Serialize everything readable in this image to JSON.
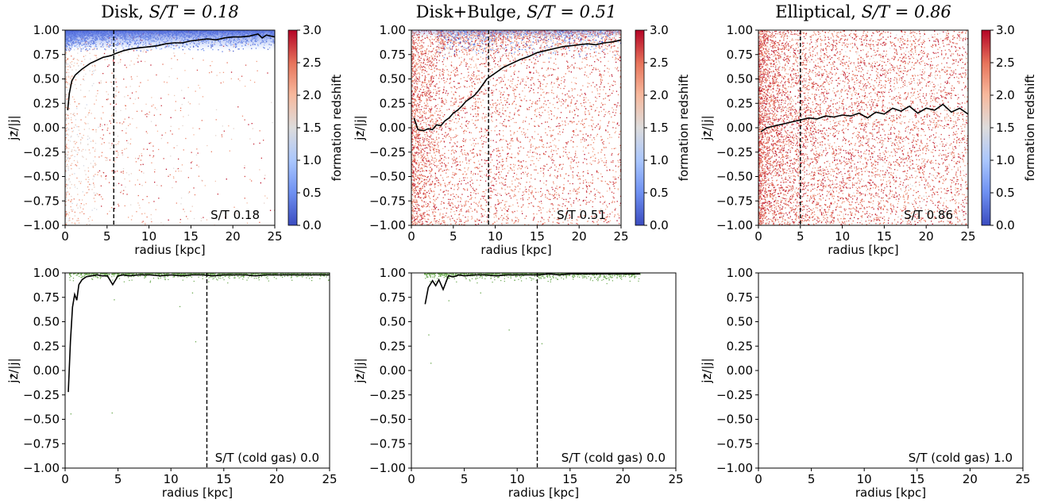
{
  "figure": {
    "colorbar_label": "formation redshift",
    "colorbar_ticks": [
      "0.0",
      "0.5",
      "1.0",
      "1.5",
      "2.0",
      "2.5",
      "3.0"
    ],
    "colorbar_range": [
      0,
      3
    ],
    "colormap": "coolwarm",
    "gas_point_color": "#6aa84f"
  },
  "chart_data": [
    {
      "type": "scatter",
      "panel": "stars-disk",
      "title": "Disk, S/T = 0.18",
      "title_prefix": "Disk, ",
      "title_math": "S/T = 0.18",
      "xlabel": "radius [kpc]",
      "ylabel": "jz/|j|",
      "xlim": [
        0,
        25
      ],
      "ylim": [
        -1,
        1
      ],
      "xticks": [
        "0",
        "5",
        "10",
        "15",
        "20",
        "25"
      ],
      "yticks": [
        "-1.00",
        "-0.75",
        "-0.50",
        "-0.25",
        "0.00",
        "0.25",
        "0.50",
        "0.75",
        "1.00"
      ],
      "vline_x": 5.8,
      "annotation": "S/T    0.18",
      "color_by": "formation redshift",
      "median_line": {
        "x": [
          0.3,
          0.5,
          0.8,
          1.2,
          1.6,
          2.0,
          2.5,
          3.0,
          3.5,
          4.0,
          4.5,
          5.0,
          5.5,
          6.0,
          7.0,
          8.0,
          9.0,
          10.0,
          11.0,
          12.0,
          13.0,
          14.0,
          15.0,
          16.0,
          17.0,
          18.0,
          19.0,
          20.0,
          21.0,
          22.0,
          23.0,
          23.5,
          24.0,
          25.0
        ],
        "y": [
          0.18,
          0.35,
          0.48,
          0.54,
          0.57,
          0.6,
          0.63,
          0.66,
          0.68,
          0.7,
          0.72,
          0.73,
          0.74,
          0.76,
          0.79,
          0.81,
          0.82,
          0.83,
          0.84,
          0.86,
          0.87,
          0.87,
          0.89,
          0.9,
          0.91,
          0.9,
          0.92,
          0.93,
          0.93,
          0.94,
          0.96,
          0.92,
          0.95,
          0.93
        ]
      }
    },
    {
      "type": "scatter",
      "panel": "stars-disk-bulge",
      "title": "Disk+Bulge, S/T = 0.51",
      "title_prefix": "Disk+Bulge, ",
      "title_math": "S/T = 0.51",
      "xlabel": "radius [kpc]",
      "ylabel": "jz/|j|",
      "xlim": [
        0,
        25
      ],
      "ylim": [
        -1,
        1
      ],
      "xticks": [
        "0",
        "5",
        "10",
        "15",
        "20",
        "25"
      ],
      "yticks": [
        "-1.00",
        "-0.75",
        "-0.50",
        "-0.25",
        "0.00",
        "0.25",
        "0.50",
        "0.75",
        "1.00"
      ],
      "vline_x": 9.2,
      "annotation": "S/T    0.51",
      "color_by": "formation redshift",
      "median_line": {
        "x": [
          0.3,
          0.8,
          1.5,
          2.0,
          2.5,
          3.0,
          3.5,
          4.0,
          4.5,
          5.0,
          5.5,
          6.0,
          6.5,
          7.0,
          7.5,
          8.0,
          8.5,
          9.0,
          9.5,
          10.0,
          11.0,
          12.0,
          13.0,
          14.0,
          15.0,
          16.0,
          17.0,
          18.0,
          19.0,
          20.0,
          21.0,
          22.0,
          23.0,
          24.0,
          25.0
        ],
        "y": [
          0.1,
          -0.02,
          -0.03,
          -0.01,
          -0.02,
          0.03,
          0.02,
          0.07,
          0.1,
          0.15,
          0.18,
          0.22,
          0.27,
          0.3,
          0.33,
          0.38,
          0.44,
          0.5,
          0.53,
          0.56,
          0.62,
          0.66,
          0.7,
          0.73,
          0.77,
          0.79,
          0.81,
          0.83,
          0.84,
          0.85,
          0.86,
          0.85,
          0.87,
          0.88,
          0.9
        ]
      }
    },
    {
      "type": "scatter",
      "panel": "stars-elliptical",
      "title": "Elliptical, S/T = 0.86",
      "title_prefix": "Elliptical, ",
      "title_math": "S/T = 0.86",
      "xlabel": "radius [kpc]",
      "ylabel": "jz/|j|",
      "xlim": [
        0,
        25
      ],
      "ylim": [
        -1,
        1
      ],
      "xticks": [
        "0",
        "5",
        "10",
        "15",
        "20",
        "25"
      ],
      "yticks": [
        "-1.00",
        "-0.75",
        "-0.50",
        "-0.25",
        "0.00",
        "0.25",
        "0.50",
        "0.75",
        "1.00"
      ],
      "vline_x": 5.0,
      "annotation": "S/T    0.86",
      "color_by": "formation redshift",
      "median_line": {
        "x": [
          0.3,
          1.0,
          2.0,
          3.0,
          4.0,
          5.0,
          6.0,
          7.0,
          8.0,
          9.0,
          10.0,
          11.0,
          12.0,
          13.0,
          14.0,
          15.0,
          16.0,
          17.0,
          18.0,
          19.0,
          20.0,
          21.0,
          22.0,
          23.0,
          24.0,
          25.0
        ],
        "y": [
          -0.04,
          0.0,
          0.02,
          0.04,
          0.06,
          0.08,
          0.1,
          0.09,
          0.12,
          0.11,
          0.13,
          0.12,
          0.15,
          0.1,
          0.16,
          0.14,
          0.2,
          0.17,
          0.22,
          0.15,
          0.2,
          0.18,
          0.24,
          0.16,
          0.2,
          0.14
        ]
      }
    },
    {
      "type": "scatter",
      "panel": "gas-disk",
      "title": "",
      "xlabel": "radius [kpc]",
      "ylabel": "jz/|j|",
      "xlim": [
        0,
        25
      ],
      "ylim": [
        -1,
        1
      ],
      "xticks": [
        "0",
        "5",
        "10",
        "15",
        "20",
        "25"
      ],
      "yticks": [
        "-1.00",
        "-0.75",
        "-0.50",
        "-0.25",
        "0.00",
        "0.25",
        "0.50",
        "0.75",
        "1.00"
      ],
      "vline_x": 13.4,
      "annotation": "S/T (cold gas)   0.0",
      "median_line": {
        "x": [
          0.3,
          0.5,
          0.7,
          0.9,
          1.1,
          1.3,
          1.6,
          2.0,
          2.5,
          3.0,
          3.5,
          4.0,
          4.5,
          5.0,
          5.5,
          6.0,
          7.0,
          8.0,
          9.0,
          10.0,
          11.0,
          12.0,
          13.0,
          14.0,
          15.0,
          16.0,
          17.0,
          18.0,
          19.0,
          20.0,
          21.0,
          22.0,
          23.0,
          24.0,
          25.0
        ],
        "y": [
          -0.22,
          0.3,
          0.65,
          0.78,
          0.72,
          0.88,
          0.93,
          0.96,
          0.97,
          0.98,
          0.97,
          0.97,
          0.88,
          0.97,
          0.98,
          0.97,
          0.98,
          0.98,
          0.97,
          0.98,
          0.97,
          0.98,
          0.98,
          0.97,
          0.98,
          0.98,
          0.98,
          0.97,
          0.98,
          0.98,
          0.98,
          0.98,
          0.98,
          0.98,
          0.98
        ]
      },
      "outliers": [
        [
          0.5,
          -0.44
        ],
        [
          4.4,
          -0.43
        ],
        [
          4.6,
          0.73
        ],
        [
          10.8,
          0.66
        ],
        [
          8.0,
          0.91
        ],
        [
          12.3,
          0.3
        ],
        [
          12.0,
          0.8
        ]
      ]
    },
    {
      "type": "scatter",
      "panel": "gas-disk-bulge",
      "title": "",
      "xlabel": "radius [kpc]",
      "ylabel": "jz/|j|",
      "xlim": [
        0,
        25
      ],
      "ylim": [
        -1,
        1
      ],
      "xticks": [
        "0",
        "5",
        "10",
        "15",
        "20",
        "25"
      ],
      "yticks": [
        "-1.00",
        "-0.75",
        "-0.50",
        "-0.25",
        "0.00",
        "0.25",
        "0.50",
        "0.75",
        "1.00"
      ],
      "vline_x": 11.9,
      "annotation": "S/T (cold gas)   0.0",
      "median_line": {
        "x": [
          1.3,
          1.6,
          2.0,
          2.3,
          2.6,
          3.0,
          3.5,
          4.0,
          4.5,
          5.0,
          6.0,
          7.0,
          8.0,
          9.0,
          10.0,
          11.0,
          12.0,
          13.0,
          14.0,
          15.0,
          16.0,
          17.0,
          18.0,
          19.0,
          20.0,
          21.0,
          21.6
        ],
        "y": [
          0.68,
          0.85,
          0.92,
          0.87,
          0.93,
          0.83,
          0.97,
          0.96,
          0.98,
          0.97,
          0.98,
          0.98,
          0.97,
          0.98,
          0.98,
          0.98,
          0.98,
          0.99,
          0.98,
          0.99,
          0.99,
          0.99,
          0.99,
          0.99,
          0.99,
          0.99,
          0.99
        ]
      },
      "outliers": [
        [
          1.6,
          0.37
        ],
        [
          1.8,
          0.08
        ],
        [
          9.2,
          0.42
        ],
        [
          12.3,
          0.28
        ],
        [
          3.5,
          0.72
        ],
        [
          6.5,
          0.8
        ]
      ]
    },
    {
      "type": "scatter",
      "panel": "gas-elliptical",
      "title": "",
      "xlabel": "radius [kpc]",
      "ylabel": "jz/|j|",
      "xlim": [
        0,
        25
      ],
      "ylim": [
        -1,
        1
      ],
      "xticks": [
        "0",
        "5",
        "10",
        "15",
        "20",
        "25"
      ],
      "yticks": [
        "-1.00",
        "-0.75",
        "-0.50",
        "-0.25",
        "0.00",
        "0.25",
        "0.50",
        "0.75",
        "1.00"
      ],
      "annotation": "S/T (cold gas)   1.0",
      "median_line": {
        "x": [],
        "y": []
      },
      "outliers": []
    }
  ]
}
